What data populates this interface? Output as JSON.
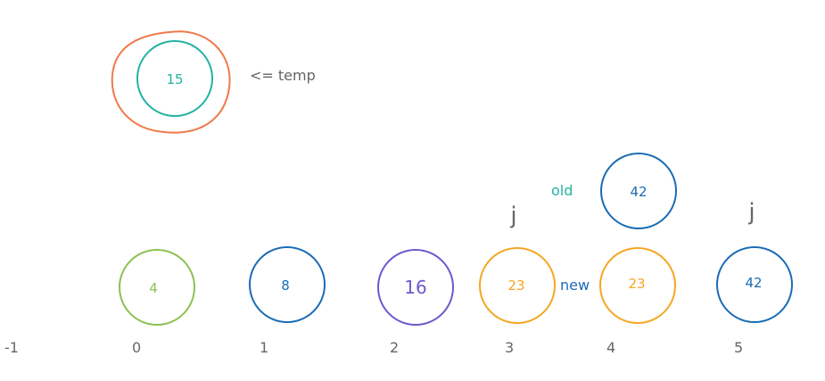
{
  "temp": {
    "value": "15",
    "label": "<= temp",
    "outer_color": "#f07a4a",
    "inner_color": "#21b3a3"
  },
  "array_nodes": [
    {
      "id": "node-4",
      "value": "4",
      "color": "#8cc152"
    },
    {
      "id": "node-8",
      "value": "8",
      "color": "#1a6cb4"
    },
    {
      "id": "node-16",
      "value": "16",
      "color": "#6a5acd"
    },
    {
      "id": "node-23-old",
      "value": "23",
      "color": "#f5a623"
    },
    {
      "id": "node-23-new",
      "value": "23",
      "color": "#f5a623"
    },
    {
      "id": "node-42",
      "value": "42",
      "color": "#1a6cb4"
    }
  ],
  "floating_node": {
    "value": "42",
    "color": "#1a6cb4"
  },
  "labels": {
    "old": "old",
    "old_color": "#21b3a3",
    "new": "new",
    "new_color": "#1a6cb4",
    "j_left": "j",
    "j_right": "j"
  },
  "indices": [
    "-1",
    "0",
    "1",
    "2",
    "3",
    "4",
    "5"
  ],
  "text_color": "#666666"
}
